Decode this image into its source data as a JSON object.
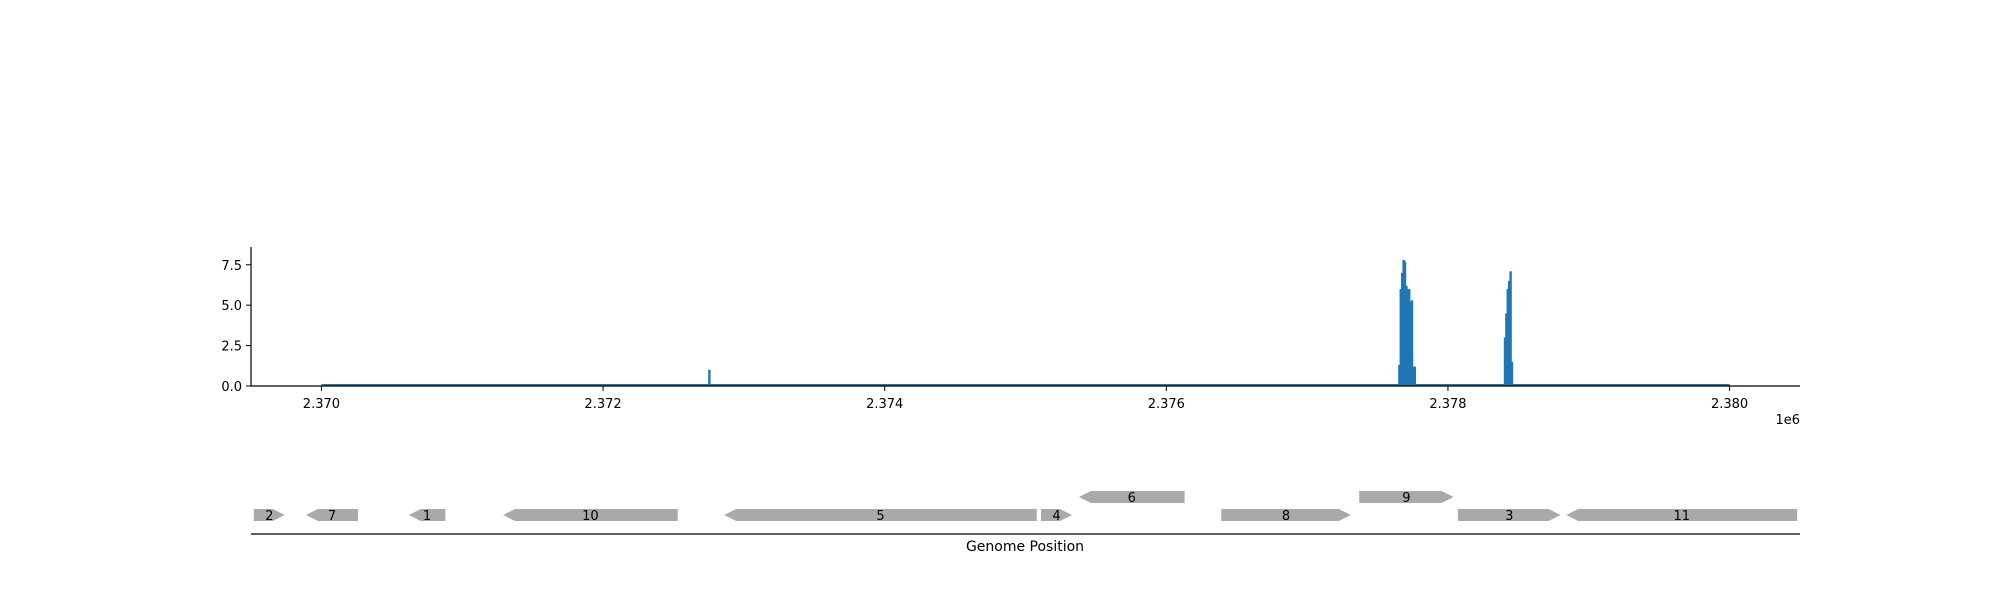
{
  "chart_data": [
    {
      "type": "bar",
      "title": "",
      "xlabel": "",
      "ylabel": "",
      "x_offset_label": "1e6",
      "xlim": [
        2369500,
        2380500
      ],
      "ylim": [
        0,
        8.6
      ],
      "x_ticks": [
        {
          "value": 2370000,
          "label": "2.370"
        },
        {
          "value": 2372000,
          "label": "2.372"
        },
        {
          "value": 2374000,
          "label": "2.374"
        },
        {
          "value": 2376000,
          "label": "2.376"
        },
        {
          "value": 2378000,
          "label": "2.378"
        },
        {
          "value": 2380000,
          "label": "2.380"
        }
      ],
      "y_ticks": [
        {
          "value": 0,
          "label": "0.0"
        },
        {
          "value": 2.5,
          "label": "2.5"
        },
        {
          "value": 5,
          "label": "5.0"
        },
        {
          "value": 7.5,
          "label": "7.5"
        }
      ],
      "baseline_range": [
        2370000,
        2380000
      ],
      "color": "#1f77b4",
      "grid": false,
      "x": [
        2372755,
        2377655,
        2377665,
        2377675,
        2377685,
        2377695,
        2377705,
        2377715,
        2377725,
        2377735,
        2377745,
        2377755,
        2377765,
        2378405,
        2378415,
        2378425,
        2378435,
        2378445,
        2378455
      ],
      "values": [
        1.0,
        1.3,
        6.0,
        7.0,
        7.8,
        7.7,
        6.2,
        6.0,
        6.0,
        5.2,
        5.3,
        1.2,
        1.2,
        3.0,
        4.5,
        6.0,
        6.5,
        7.1,
        1.5
      ]
    },
    {
      "type": "gene_map",
      "xlabel": "Genome Position",
      "color": "#a9a9a9",
      "genes": [
        {
          "label": "2",
          "start": 2369520,
          "end": 2369740,
          "strand": "+",
          "row": 0
        },
        {
          "label": "7",
          "start": 2369890,
          "end": 2370260,
          "strand": "-",
          "row": 0
        },
        {
          "label": "1",
          "start": 2370620,
          "end": 2370880,
          "strand": "-",
          "row": 0
        },
        {
          "label": "10",
          "start": 2371290,
          "end": 2372530,
          "strand": "-",
          "row": 0
        },
        {
          "label": "5",
          "start": 2372860,
          "end": 2375080,
          "strand": "-",
          "row": 0
        },
        {
          "label": "4",
          "start": 2375110,
          "end": 2375330,
          "strand": "+",
          "row": 0
        },
        {
          "label": "6",
          "start": 2375380,
          "end": 2376130,
          "strand": "-",
          "row": 1
        },
        {
          "label": "8",
          "start": 2376390,
          "end": 2377310,
          "strand": "+",
          "row": 0
        },
        {
          "label": "9",
          "start": 2377370,
          "end": 2378040,
          "strand": "+",
          "row": 1
        },
        {
          "label": "3",
          "start": 2378070,
          "end": 2378800,
          "strand": "+",
          "row": 0
        },
        {
          "label": "11",
          "start": 2378840,
          "end": 2380480,
          "strand": "-",
          "row": 0
        }
      ]
    }
  ]
}
